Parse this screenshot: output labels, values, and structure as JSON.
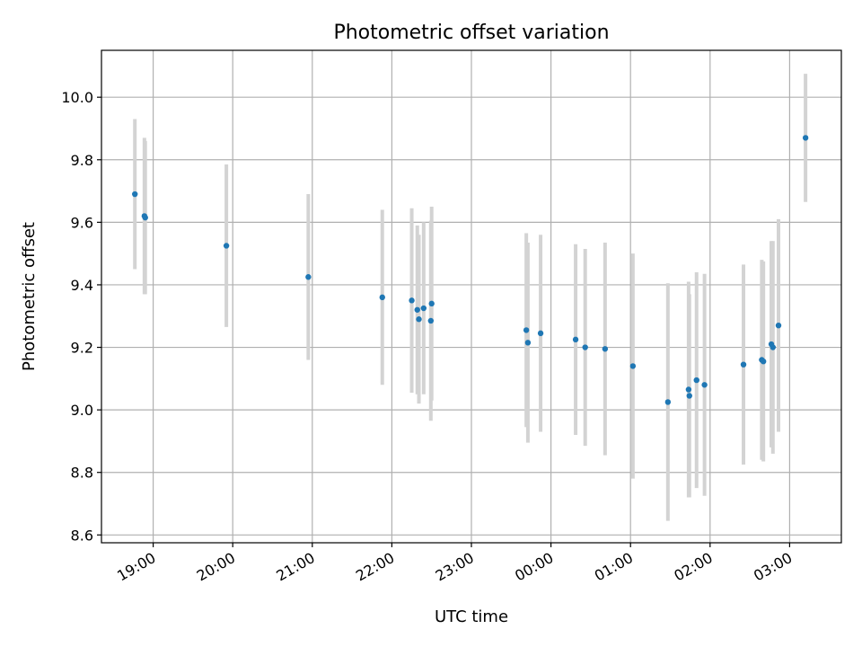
{
  "chart_data": {
    "type": "scatter",
    "title": "Photometric offset variation",
    "xlabel": "UTC time",
    "ylabel": "Photometric offset",
    "grid": true,
    "x_unit": "hours since 00:00 UTC (points before midnight are negative)",
    "xlim": [
      -5.65,
      3.65
    ],
    "ylim": [
      8.575,
      10.15
    ],
    "x_ticks": [
      {
        "value": -5,
        "label": "19:00"
      },
      {
        "value": -4,
        "label": "20:00"
      },
      {
        "value": -3,
        "label": "21:00"
      },
      {
        "value": -2,
        "label": "22:00"
      },
      {
        "value": -1,
        "label": "23:00"
      },
      {
        "value": 0,
        "label": "00:00"
      },
      {
        "value": 1,
        "label": "01:00"
      },
      {
        "value": 2,
        "label": "02:00"
      },
      {
        "value": 3,
        "label": "03:00"
      }
    ],
    "y_ticks": [
      {
        "value": 8.6,
        "label": "8.6"
      },
      {
        "value": 8.8,
        "label": "8.8"
      },
      {
        "value": 9.0,
        "label": "9.0"
      },
      {
        "value": 9.2,
        "label": "9.2"
      },
      {
        "value": 9.4,
        "label": "9.4"
      },
      {
        "value": 9.6,
        "label": "9.6"
      },
      {
        "value": 9.8,
        "label": "9.8"
      },
      {
        "value": 10.0,
        "label": "10.0"
      }
    ],
    "point_color": "#1f77b4",
    "errorbar_color": "#d3d3d3",
    "points": [
      {
        "x": -5.23,
        "y": 9.69,
        "err": 0.24
      },
      {
        "x": -5.11,
        "y": 9.62,
        "err": 0.25
      },
      {
        "x": -5.1,
        "y": 9.615,
        "err": 0.245
      },
      {
        "x": -4.08,
        "y": 9.525,
        "err": 0.26
      },
      {
        "x": -3.05,
        "y": 9.425,
        "err": 0.265
      },
      {
        "x": -2.12,
        "y": 9.36,
        "err": 0.28
      },
      {
        "x": -1.75,
        "y": 9.35,
        "err": 0.295
      },
      {
        "x": -1.68,
        "y": 9.32,
        "err": 0.27
      },
      {
        "x": -1.66,
        "y": 9.29,
        "err": 0.27
      },
      {
        "x": -1.6,
        "y": 9.325,
        "err": 0.275
      },
      {
        "x": -1.51,
        "y": 9.285,
        "err": 0.32
      },
      {
        "x": -1.5,
        "y": 9.34,
        "err": 0.31
      },
      {
        "x": -0.31,
        "y": 9.255,
        "err": 0.31
      },
      {
        "x": -0.29,
        "y": 9.215,
        "err": 0.32
      },
      {
        "x": -0.13,
        "y": 9.245,
        "err": 0.315
      },
      {
        "x": 0.31,
        "y": 9.225,
        "err": 0.305
      },
      {
        "x": 0.43,
        "y": 9.2,
        "err": 0.315
      },
      {
        "x": 0.68,
        "y": 9.195,
        "err": 0.34
      },
      {
        "x": 1.03,
        "y": 9.14,
        "err": 0.36
      },
      {
        "x": 1.47,
        "y": 9.025,
        "err": 0.38
      },
      {
        "x": 1.73,
        "y": 9.065,
        "err": 0.345
      },
      {
        "x": 1.74,
        "y": 9.045,
        "err": 0.325
      },
      {
        "x": 1.83,
        "y": 9.095,
        "err": 0.345
      },
      {
        "x": 1.93,
        "y": 9.08,
        "err": 0.355
      },
      {
        "x": 2.42,
        "y": 9.145,
        "err": 0.32
      },
      {
        "x": 2.65,
        "y": 9.16,
        "err": 0.32
      },
      {
        "x": 2.67,
        "y": 9.155,
        "err": 0.32
      },
      {
        "x": 2.77,
        "y": 9.21,
        "err": 0.33
      },
      {
        "x": 2.79,
        "y": 9.2,
        "err": 0.34
      },
      {
        "x": 2.86,
        "y": 9.27,
        "err": 0.34
      },
      {
        "x": 3.2,
        "y": 9.87,
        "err": 0.205
      }
    ]
  }
}
